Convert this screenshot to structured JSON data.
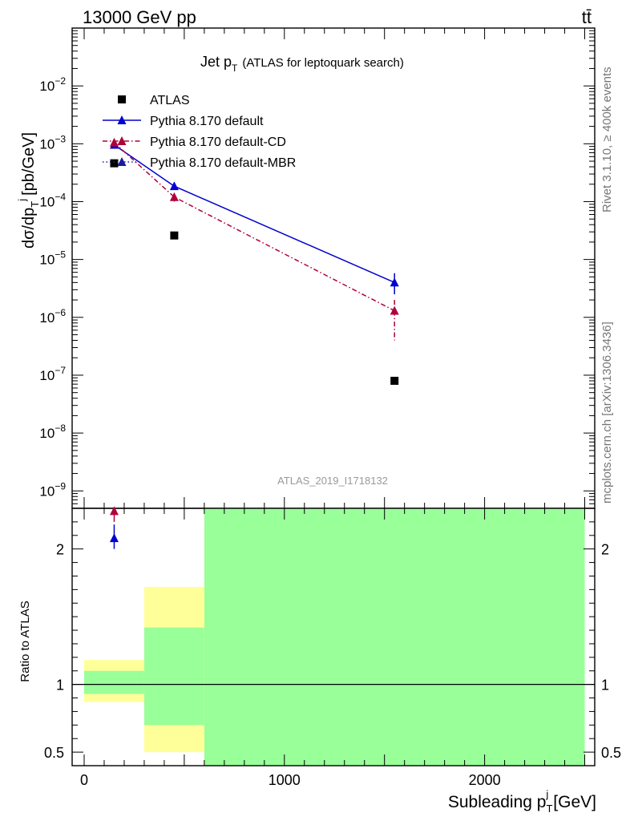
{
  "header": {
    "left": "13000 GeV pp",
    "right": "tt̄"
  },
  "side_labels": {
    "rivet": "Rivet 3.1.10, ≥ 400k events",
    "site": "mcplots.cern.ch [arXiv:1306.3436]"
  },
  "chart_data": [
    {
      "type": "scatter",
      "title_main": "Jet p",
      "title_sub": "T",
      "title_note": "(ATLAS for leptoquark search)",
      "ylabel_prefix": "dσ/dp",
      "ylabel_sub": "T",
      "ylabel_sup": "j",
      "ylabel_suffix": "[pb/GeV]",
      "yscale": "log",
      "ylim": [
        5e-10,
        0.1
      ],
      "xlim": [
        -60,
        2550
      ],
      "y_ticks": [
        {
          "v": 1e-09,
          "b": "10",
          "e": "−9"
        },
        {
          "v": 1e-08,
          "b": "10",
          "e": "−8"
        },
        {
          "v": 1e-07,
          "b": "10",
          "e": "−7"
        },
        {
          "v": 1e-06,
          "b": "10",
          "e": "−6"
        },
        {
          "v": 1e-05,
          "b": "10",
          "e": "−5"
        },
        {
          "v": 0.0001,
          "b": "10",
          "e": "−4"
        },
        {
          "v": 0.001,
          "b": "10",
          "e": "−3"
        },
        {
          "v": 0.01,
          "b": "10",
          "e": "−2"
        }
      ],
      "watermark": "ATLAS_2019_I1718132",
      "legend_position": "top-left",
      "series": [
        {
          "name": "ATLAS",
          "color": "#000000",
          "marker": "square",
          "x": [
            150,
            450,
            1550
          ],
          "y": [
            0.00046,
            2.6e-05,
            8e-08
          ]
        },
        {
          "name": "Pythia 8.170 default",
          "color": "#0000d0",
          "marker": "triangle",
          "line": "solid",
          "x": [
            150,
            450,
            1550
          ],
          "y": [
            0.00096,
            0.000185,
            4e-06
          ],
          "yerr_up": [
            0.0011,
            0.00021,
            5.8e-06
          ],
          "yerr_down": [
            0.00085,
            0.00016,
            2.5e-06
          ]
        },
        {
          "name": "Pythia 8.170 default-CD",
          "color": "#b0003a",
          "marker": "triangle",
          "line": "dashdot",
          "x": [
            150,
            450,
            1550
          ],
          "y": [
            0.00105,
            0.00012,
            1.3e-06
          ],
          "yerr_up": [
            0.00115,
            0.00014,
            2e-06
          ],
          "yerr_down": [
            0.00095,
            0.0001,
            4e-07
          ]
        },
        {
          "name": "Pythia 8.170 default-MBR",
          "color": "#1a1aa0",
          "marker": "triangle",
          "line": "dotted",
          "x": [],
          "y": []
        }
      ]
    },
    {
      "type": "ratio",
      "ylabel": "Ratio to ATLAS",
      "xlabel_main": "Subleading p",
      "xlabel_sub": "T",
      "xlabel_sup": "j",
      "xlabel_suffix": "[GeV]",
      "xlim": [
        -60,
        2550
      ],
      "ylim": [
        0.4,
        2.3
      ],
      "x_ticks": [
        0,
        1000,
        2000
      ],
      "y_ticks": [
        0.5,
        1,
        2
      ],
      "reference": 1,
      "bands": [
        {
          "x0": 0,
          "x1": 300,
          "yellow": [
            0.87,
            1.18
          ],
          "green": [
            0.93,
            1.1
          ]
        },
        {
          "x0": 300,
          "x1": 600,
          "yellow": [
            0.5,
            1.72
          ],
          "green": [
            0.7,
            1.42
          ]
        },
        {
          "x0": 600,
          "x1": 2500,
          "yellow": [
            0.3,
            2.5
          ],
          "green": [
            0.3,
            2.5
          ]
        }
      ],
      "colors": {
        "yellow": "#ffff99",
        "green": "#99ff99"
      },
      "points": [
        {
          "series": "Pythia 8.170 default",
          "color": "#0000d0",
          "x": 150,
          "y": 2.08,
          "yerr": [
            2.0,
            2.18
          ]
        },
        {
          "series": "Pythia 8.170 default-CD",
          "color": "#b0003a",
          "x": 150,
          "y": 2.28,
          "yerr": [
            2.2,
            2.36
          ]
        }
      ]
    }
  ]
}
